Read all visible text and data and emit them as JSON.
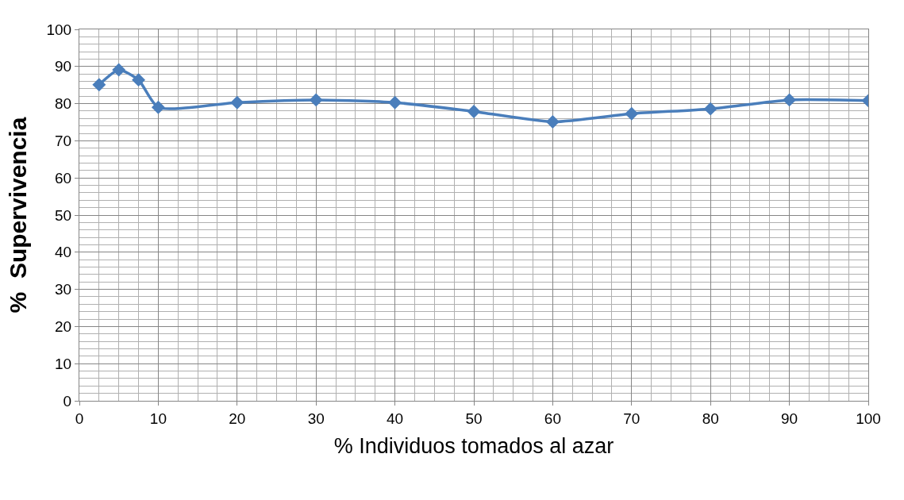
{
  "chart_data": {
    "type": "line",
    "xlabel": "% Individuos tomados al azar",
    "ylabel": "%  Supervivencia",
    "x": [
      2.5,
      5,
      7.5,
      10,
      20,
      30,
      40,
      50,
      60,
      70,
      80,
      90,
      100
    ],
    "series": [
      {
        "color": "#4a7ebb",
        "values": [
          85.1,
          89.1,
          86.4,
          79.0,
          80.3,
          81.0,
          80.3,
          77.9,
          75.1,
          77.3,
          78.6,
          81.0,
          80.8
        ]
      }
    ],
    "xlim": [
      0,
      100
    ],
    "xticks": [
      0,
      10,
      20,
      30,
      40,
      50,
      60,
      70,
      80,
      90,
      100
    ],
    "ylim": [
      0,
      100
    ],
    "yticks": [
      0,
      10,
      20,
      30,
      40,
      50,
      60,
      70,
      80,
      90,
      100
    ],
    "grid": true,
    "marker": "diamond",
    "line_style": "solid"
  }
}
